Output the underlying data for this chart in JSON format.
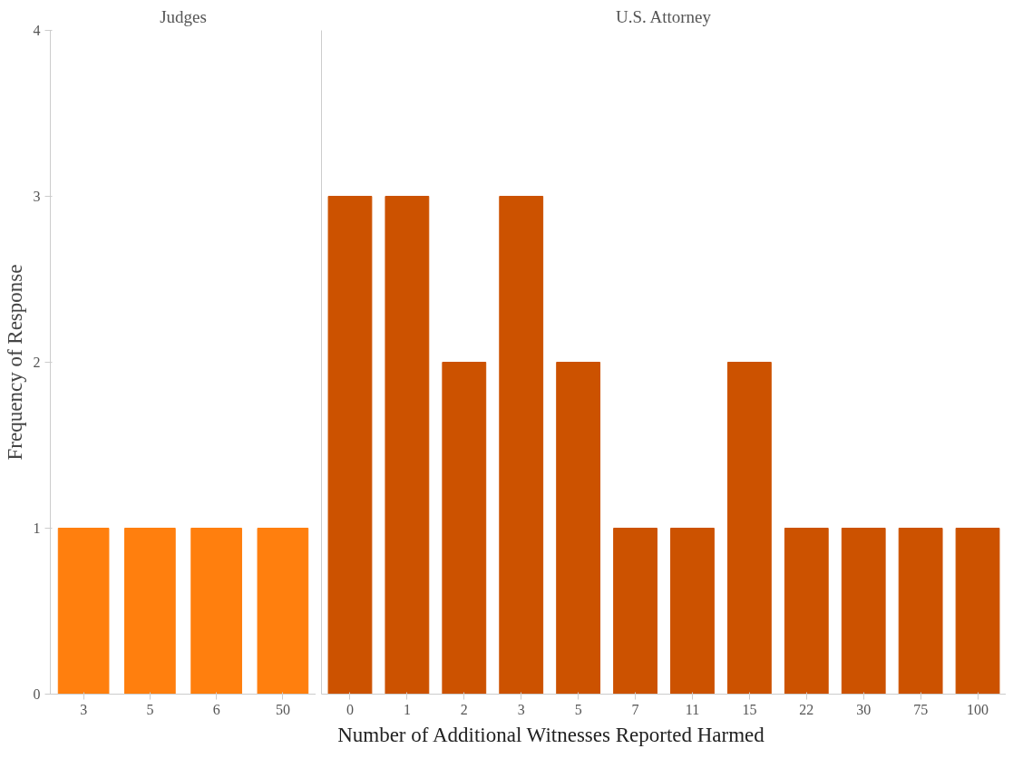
{
  "chart_data": [
    {
      "type": "bar",
      "title": "Judges",
      "ylabel": "Frequency of Response",
      "categories": [
        "3",
        "5",
        "6",
        "50"
      ],
      "values": [
        1,
        1,
        1,
        1
      ],
      "color": "#ff7f0e",
      "ylim": [
        0,
        4
      ],
      "yticks": [
        0,
        1,
        2,
        3,
        4
      ]
    },
    {
      "type": "bar",
      "title": "U.S. Attorney",
      "xlabel": "Number of Additional Witnesses Reported Harmed",
      "categories": [
        "0",
        "1",
        "2",
        "3",
        "5",
        "7",
        "11",
        "15",
        "22",
        "30",
        "75",
        "100"
      ],
      "values": [
        3,
        3,
        2,
        3,
        2,
        1,
        1,
        2,
        1,
        1,
        1,
        1
      ],
      "color": "#cc5200",
      "ylim": [
        0,
        4
      ],
      "yticks": [
        0,
        1,
        2,
        3,
        4
      ],
      "tick_labels": "x"
    }
  ]
}
